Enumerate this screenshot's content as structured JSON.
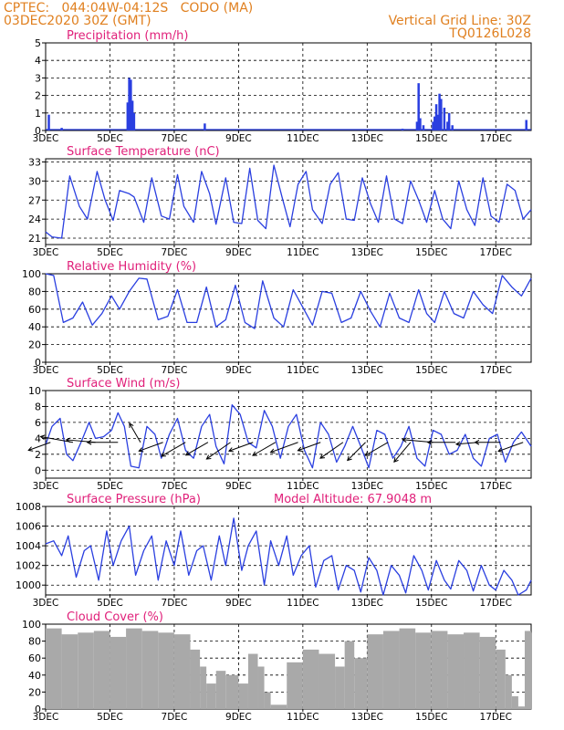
{
  "header": {
    "line1_left": "CPTEC:   044:04W-04:12S   CODO (MA)",
    "line2_left": "03DEC2020 30Z (GMT)",
    "line1_right": "Vertical Grid Line: 30Z",
    "line2_right": "TQ0126L028"
  },
  "colors": {
    "header": "#e08020",
    "title": "#e0207a",
    "series": "#2a3fe0",
    "cloud": "#a9a9a9",
    "wind_arrow": "#000000"
  },
  "x_ticks": [
    "3DEC",
    "5DEC",
    "7DEC",
    "9DEC",
    "11DEC",
    "13DEC",
    "15DEC",
    "17DEC"
  ],
  "altitude_label": "Model Altitude: 67.9048 m",
  "chart_data": [
    {
      "id": "precip",
      "type": "bar",
      "title": "Precipitation (mm/h)",
      "ylim": [
        0,
        5
      ],
      "yticks": [
        "0",
        "1",
        "2",
        "3",
        "4",
        "5"
      ],
      "x_days": [
        0.1,
        0.5,
        2.55,
        2.6,
        2.65,
        2.7,
        2.75,
        4.95,
        11.1,
        11.55,
        11.6,
        11.65,
        11.75,
        12.05,
        12.1,
        12.15,
        12.2,
        12.25,
        12.3,
        12.4,
        12.5,
        12.55,
        12.65,
        14.95
      ],
      "values": [
        0.9,
        0.15,
        1.6,
        3.0,
        2.9,
        1.7,
        1.0,
        0.4,
        0.1,
        0.5,
        2.7,
        0.7,
        0.3,
        0.5,
        0.8,
        1.5,
        0.9,
        2.1,
        1.8,
        1.3,
        0.5,
        1.0,
        0.3,
        0.6
      ]
    },
    {
      "id": "temp",
      "type": "line",
      "title": "Surface Temperature (nC)",
      "ylim": [
        20,
        33.5
      ],
      "yticks": [
        "21",
        "24",
        "27",
        "30",
        "33"
      ],
      "x_days": [
        0,
        0.2,
        0.5,
        0.75,
        1.05,
        1.3,
        1.6,
        1.85,
        2.1,
        2.3,
        2.6,
        2.75,
        3.05,
        3.3,
        3.6,
        3.85,
        4.1,
        4.3,
        4.6,
        4.85,
        5.1,
        5.3,
        5.6,
        5.85,
        6.1,
        6.35,
        6.6,
        6.85,
        7.1,
        7.35,
        7.6,
        7.85,
        8.1,
        8.3,
        8.6,
        8.85,
        9.1,
        9.35,
        9.6,
        9.85,
        10.1,
        10.35,
        10.6,
        10.85,
        11.1,
        11.35,
        11.6,
        11.85,
        12.1,
        12.35,
        12.6,
        12.85,
        13.1,
        13.35,
        13.6,
        13.85,
        14.1,
        14.35,
        14.6,
        14.85,
        15.1
      ],
      "values": [
        22,
        21.2,
        21.0,
        30.8,
        26.0,
        24.0,
        31.5,
        27.0,
        23.8,
        28.5,
        28.0,
        27.5,
        23.5,
        30.5,
        24.5,
        24.0,
        31.0,
        26.0,
        23.5,
        31.5,
        28.0,
        23.2,
        30.5,
        23.5,
        23.3,
        32.0,
        23.8,
        22.5,
        32.5,
        27.5,
        22.8,
        29.5,
        31.5,
        25.5,
        23.3,
        29.5,
        31.3,
        24.0,
        23.8,
        30.5,
        26.5,
        23.5,
        30.8,
        24.0,
        23.3,
        30.0,
        27.0,
        23.5,
        28.5,
        24.0,
        22.5,
        30.0,
        25.5,
        23.0,
        30.5,
        24.5,
        23.5,
        29.5,
        28.5,
        24.0,
        25.5
      ]
    },
    {
      "id": "rh",
      "type": "line",
      "title": "Relative Humidity (%)",
      "ylim": [
        0,
        100
      ],
      "yticks": [
        "0",
        "20",
        "40",
        "60",
        "80",
        "100"
      ],
      "x_days": [
        0,
        0.25,
        0.55,
        0.85,
        1.15,
        1.45,
        1.75,
        2.05,
        2.3,
        2.6,
        2.9,
        3.15,
        3.5,
        3.8,
        4.1,
        4.4,
        4.7,
        5.0,
        5.3,
        5.6,
        5.9,
        6.2,
        6.5,
        6.75,
        7.1,
        7.4,
        7.7,
        8.0,
        8.3,
        8.6,
        8.9,
        9.2,
        9.5,
        9.8,
        10.1,
        10.4,
        10.7,
        11.0,
        11.3,
        11.6,
        11.85,
        12.1,
        12.4,
        12.7,
        13.0,
        13.3,
        13.6,
        13.9,
        14.2,
        14.5,
        14.8,
        15.1
      ],
      "values": [
        100,
        98,
        45,
        50,
        68,
        42,
        55,
        75,
        60,
        80,
        95,
        94,
        48,
        52,
        82,
        45,
        45,
        85,
        40,
        48,
        87,
        45,
        38,
        92,
        50,
        40,
        82,
        62,
        42,
        80,
        78,
        45,
        50,
        80,
        58,
        40,
        78,
        50,
        45,
        82,
        55,
        45,
        80,
        55,
        50,
        80,
        65,
        55,
        98,
        85,
        75,
        95
      ]
    },
    {
      "id": "wind",
      "type": "line",
      "title": "Surface Wind (m/s)",
      "ylim": [
        -1,
        10
      ],
      "yticks": [
        "0",
        "2",
        "4",
        "6",
        "8",
        "10"
      ],
      "x_days": [
        0,
        0.2,
        0.45,
        0.65,
        0.85,
        1.1,
        1.35,
        1.55,
        1.8,
        2.05,
        2.25,
        2.45,
        2.65,
        2.9,
        3.15,
        3.4,
        3.6,
        3.85,
        4.1,
        4.35,
        4.6,
        4.85,
        5.1,
        5.3,
        5.55,
        5.8,
        6.05,
        6.3,
        6.55,
        6.8,
        7.05,
        7.3,
        7.55,
        7.8,
        8.05,
        8.3,
        8.55,
        8.8,
        9.05,
        9.3,
        9.55,
        9.8,
        10.05,
        10.3,
        10.55,
        10.8,
        11.05,
        11.3,
        11.55,
        11.8,
        12.05,
        12.3,
        12.55,
        12.8,
        13.05,
        13.3,
        13.55,
        13.8,
        14.05,
        14.3,
        14.55,
        14.8,
        15.1
      ],
      "values": [
        3.2,
        5.5,
        6.5,
        2.0,
        1.2,
        3.5,
        6.0,
        4.0,
        4.2,
        5.0,
        7.2,
        5.5,
        0.5,
        0.3,
        5.5,
        4.5,
        1.5,
        4.5,
        6.5,
        2.5,
        1.5,
        5.5,
        7.0,
        3.0,
        0.8,
        8.2,
        7.0,
        3.5,
        2.8,
        7.5,
        5.5,
        1.5,
        5.5,
        7.0,
        2.5,
        0.3,
        6.0,
        4.5,
        1.0,
        3.0,
        5.5,
        3.0,
        0.3,
        5.0,
        4.5,
        1.5,
        3.0,
        5.5,
        1.5,
        0.5,
        5.0,
        4.5,
        2.0,
        2.5,
        4.5,
        1.5,
        0.5,
        4.0,
        4.5,
        1.0,
        3.5,
        4.8,
        3.0
      ],
      "arrows_x_days": [
        0.15,
        0.85,
        1.55,
        2.25,
        2.95,
        3.65,
        4.35,
        5.05,
        5.75,
        6.45,
        7.15,
        7.85,
        8.55,
        9.25,
        9.95,
        10.65,
        11.35,
        12.05,
        12.75,
        13.45,
        14.15,
        14.85
      ],
      "arrows_dir_deg": [
        200,
        170,
        175,
        180,
        120,
        200,
        210,
        210,
        215,
        200,
        210,
        200,
        200,
        215,
        225,
        210,
        230,
        175,
        180,
        185,
        180,
        200
      ],
      "arrows_speed": [
        3.2,
        4.5,
        4.0,
        4.2,
        3.0,
        3.5,
        3.8,
        3.5,
        4.0,
        3.5,
        3.6,
        4.0,
        3.3,
        3.8,
        3.5,
        3.6,
        3.5,
        4.2,
        3.8,
        3.0,
        3.5,
        3.6
      ]
    },
    {
      "id": "pressure",
      "type": "line",
      "title": "Surface Pressure (hPa)",
      "ylim": [
        999,
        1008
      ],
      "yticks": [
        "1000",
        "1002",
        "1004",
        "1006",
        "1008"
      ],
      "x_days": [
        0,
        0.25,
        0.5,
        0.7,
        0.95,
        1.2,
        1.4,
        1.65,
        1.9,
        2.1,
        2.35,
        2.6,
        2.8,
        3.05,
        3.3,
        3.5,
        3.75,
        4.0,
        4.2,
        4.45,
        4.7,
        4.9,
        5.15,
        5.4,
        5.6,
        5.85,
        6.1,
        6.3,
        6.55,
        6.8,
        7.0,
        7.25,
        7.5,
        7.7,
        7.95,
        8.2,
        8.4,
        8.65,
        8.9,
        9.1,
        9.35,
        9.6,
        9.8,
        10.05,
        10.3,
        10.5,
        10.75,
        11.0,
        11.2,
        11.45,
        11.7,
        11.9,
        12.15,
        12.4,
        12.6,
        12.85,
        13.1,
        13.3,
        13.55,
        13.8,
        14.0,
        14.25,
        14.5,
        14.7,
        14.95,
        15.1
      ],
      "values": [
        1004.2,
        1004.5,
        1003.0,
        1005.0,
        1000.8,
        1003.5,
        1004.0,
        1000.5,
        1005.5,
        1002.0,
        1004.5,
        1006.0,
        1001.0,
        1003.5,
        1005.0,
        1000.5,
        1004.5,
        1002.0,
        1005.5,
        1001.0,
        1003.5,
        1004.0,
        1000.5,
        1005.0,
        1002.0,
        1006.8,
        1001.5,
        1004.0,
        1005.5,
        1000.0,
        1004.5,
        1002.0,
        1005.0,
        1001.0,
        1003.0,
        1004.0,
        999.8,
        1002.5,
        1003.0,
        999.5,
        1002.0,
        1001.5,
        999.3,
        1002.8,
        1001.5,
        999.0,
        1002.0,
        1001.0,
        999.2,
        1003.0,
        1001.5,
        999.5,
        1002.5,
        1000.5,
        999.6,
        1002.5,
        1001.5,
        999.4,
        1002.0,
        1000.0,
        999.5,
        1001.5,
        1000.5,
        999.0,
        999.5,
        1000.5
      ]
    },
    {
      "id": "cloud",
      "type": "bar",
      "title": "Cloud Cover (%)",
      "ylim": [
        0,
        100
      ],
      "yticks": [
        "0",
        "20",
        "40",
        "60",
        "80",
        "100"
      ],
      "x_days": [
        0,
        0.5,
        1.0,
        1.5,
        2.0,
        2.5,
        3.0,
        3.5,
        4.0,
        4.5,
        4.8,
        5.0,
        5.3,
        5.6,
        6.0,
        6.3,
        6.6,
        6.8,
        7.0,
        7.5,
        8.0,
        8.5,
        9.0,
        9.3,
        9.6,
        10.0,
        10.5,
        11.0,
        11.5,
        12.0,
        12.5,
        13.0,
        13.5,
        14.0,
        14.3,
        14.5,
        14.7,
        14.9,
        15.1
      ],
      "values": [
        95,
        88,
        90,
        92,
        85,
        95,
        92,
        90,
        88,
        70,
        50,
        30,
        45,
        40,
        30,
        65,
        50,
        20,
        5,
        55,
        70,
        65,
        50,
        80,
        60,
        88,
        92,
        95,
        90,
        92,
        88,
        90,
        85,
        70,
        40,
        15,
        3,
        92,
        90
      ]
    }
  ]
}
